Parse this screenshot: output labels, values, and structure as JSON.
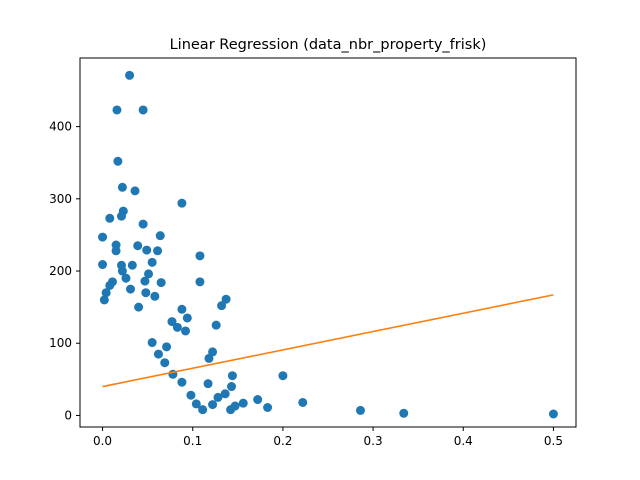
{
  "chart_data": {
    "type": "scatter",
    "title": "Linear Regression (data_nbr_property_frisk)",
    "xlabel": "",
    "ylabel": "",
    "xlim": [
      -0.025,
      0.525
    ],
    "ylim": [
      -16,
      495
    ],
    "xticks": [
      0.0,
      0.1,
      0.2,
      0.3,
      0.4,
      0.5
    ],
    "xtick_labels": [
      "0.0",
      "0.1",
      "0.2",
      "0.3",
      "0.4",
      "0.5"
    ],
    "yticks": [
      0,
      100,
      200,
      300,
      400
    ],
    "ytick_labels": [
      "0",
      "100",
      "200",
      "300",
      "400"
    ],
    "grid": false,
    "colors": {
      "points": "#1f77b4",
      "line": "#ff7f0e"
    },
    "series": [
      {
        "kind": "scatter",
        "points": [
          [
            0.03,
            471
          ],
          [
            0.016,
            423
          ],
          [
            0.045,
            423
          ],
          [
            0.017,
            352
          ],
          [
            0.022,
            316
          ],
          [
            0.036,
            311
          ],
          [
            0.088,
            294
          ],
          [
            0.023,
            283
          ],
          [
            0.021,
            276
          ],
          [
            0.008,
            273
          ],
          [
            0.045,
            265
          ],
          [
            0.0,
            247
          ],
          [
            0.064,
            249
          ],
          [
            0.015,
            236
          ],
          [
            0.039,
            235
          ],
          [
            0.049,
            229
          ],
          [
            0.015,
            228
          ],
          [
            0.061,
            228
          ],
          [
            0.108,
            221
          ],
          [
            0.055,
            212
          ],
          [
            0.021,
            208
          ],
          [
            0.033,
            208
          ],
          [
            0.0,
            209
          ],
          [
            0.022,
            200
          ],
          [
            0.051,
            196
          ],
          [
            0.026,
            190
          ],
          [
            0.047,
            186
          ],
          [
            0.065,
            184
          ],
          [
            0.108,
            185
          ],
          [
            0.011,
            185
          ],
          [
            0.031,
            175
          ],
          [
            0.008,
            180
          ],
          [
            0.004,
            170
          ],
          [
            0.048,
            170
          ],
          [
            0.058,
            165
          ],
          [
            0.137,
            161
          ],
          [
            0.132,
            152
          ],
          [
            0.04,
            150
          ],
          [
            0.088,
            147
          ],
          [
            0.002,
            160
          ],
          [
            0.094,
            135
          ],
          [
            0.077,
            130
          ],
          [
            0.126,
            125
          ],
          [
            0.083,
            122
          ],
          [
            0.092,
            117
          ],
          [
            0.122,
            88
          ],
          [
            0.118,
            79
          ],
          [
            0.286,
            7
          ],
          [
            0.334,
            3
          ],
          [
            0.5,
            2
          ],
          [
            0.2,
            55
          ],
          [
            0.222,
            18
          ],
          [
            0.183,
            11
          ],
          [
            0.172,
            22
          ],
          [
            0.156,
            17
          ],
          [
            0.147,
            13
          ],
          [
            0.142,
            8
          ],
          [
            0.136,
            30
          ],
          [
            0.143,
            40
          ],
          [
            0.144,
            55
          ],
          [
            0.117,
            44
          ],
          [
            0.111,
            8
          ],
          [
            0.104,
            16
          ],
          [
            0.098,
            28
          ],
          [
            0.122,
            15
          ],
          [
            0.128,
            25
          ],
          [
            0.088,
            46
          ],
          [
            0.078,
            57
          ],
          [
            0.069,
            73
          ],
          [
            0.062,
            85
          ],
          [
            0.055,
            101
          ],
          [
            0.071,
            95
          ]
        ]
      },
      {
        "kind": "line",
        "points": [
          [
            0.0,
            40
          ],
          [
            0.5,
            167
          ]
        ]
      }
    ]
  }
}
